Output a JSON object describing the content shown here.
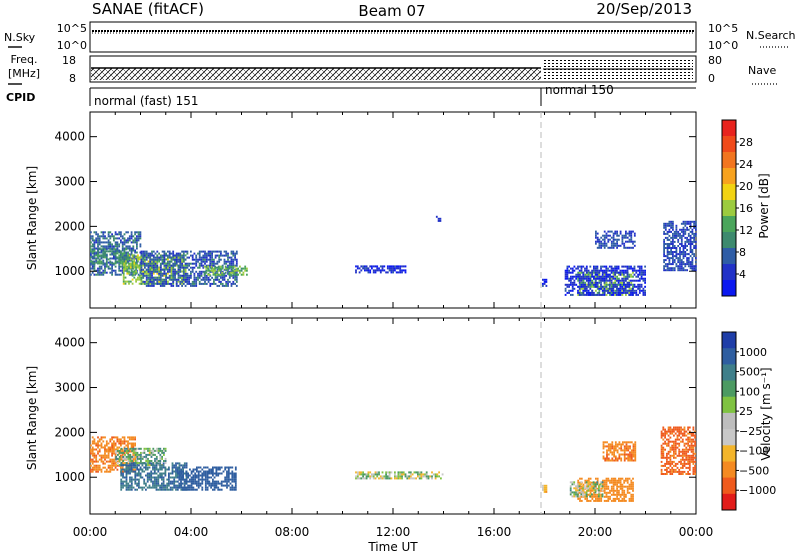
{
  "header": {
    "station": "SANAE (fitACF)",
    "beam": "Beam 07",
    "date": "20/Sep/2013"
  },
  "status_panels": {
    "nsky_label": "N.Sky",
    "nsky_ticks": [
      "10^5",
      "10^0"
    ],
    "nsearch_label": "N.Search",
    "nsearch_ticks": [
      "10^5",
      "10^0"
    ],
    "freq_label_line1": "Freq.",
    "freq_label_line2": "[MHz]",
    "freq_ticks": [
      "18",
      "8"
    ],
    "nave_label": "Nave",
    "nave_ticks": [
      "80",
      "0"
    ],
    "cpid_label": "CPID",
    "cpid_segments": [
      {
        "label": "normal (fast) 151",
        "start_h": 0,
        "end_h": 18
      },
      {
        "label": "normal 150",
        "start_h": 18,
        "end_h": 24
      }
    ]
  },
  "legend": {
    "power_label": "Power [dB]",
    "power_ticks": [
      "28",
      "24",
      "20",
      "16",
      "12",
      "8",
      "4"
    ],
    "velocity_label": "Velocity [m s⁻¹]",
    "velocity_ticks": [
      "1000",
      "500",
      "100",
      "25",
      "−25",
      "−100",
      "−500",
      "−1000"
    ],
    "power_colors": [
      "#e8231e",
      "#f04a1a",
      "#f2751f",
      "#f7a21e",
      "#f2d312",
      "#9ccb3f",
      "#4aa55b",
      "#3d8a6e",
      "#2f5da6",
      "#2232c7",
      "#0b18f0"
    ],
    "velocity_colors": [
      "#1f3ea8",
      "#2f5ea0",
      "#3f7f8a",
      "#4c9a62",
      "#7fc241",
      "#bdbdbd",
      "#c8c8c8",
      "#f3b52b",
      "#f48a21",
      "#ef5a1d",
      "#e21c1a"
    ]
  },
  "chart_data": [
    {
      "type": "heatmap",
      "title": "",
      "xlabel": "",
      "ylabel": "Slant Range [km]",
      "colorbar_label": "Power [dB]",
      "colorbar_ticks": [
        4,
        8,
        12,
        16,
        20,
        24,
        28
      ],
      "xlim_hours": [
        0,
        24
      ],
      "ylim_km": [
        180,
        4550
      ],
      "x_ticks": [
        "00:00",
        "04:00",
        "08:00",
        "12:00",
        "16:00",
        "20:00",
        "00:00"
      ],
      "y_ticks": [
        1000,
        2000,
        3000,
        4000
      ],
      "regions": [
        {
          "t0": 0.0,
          "t1": 2.0,
          "r0": 900,
          "r1": 1850,
          "value": 10
        },
        {
          "t0": 1.3,
          "t1": 3.8,
          "r0": 700,
          "r1": 1350,
          "value": 18
        },
        {
          "t0": 2.0,
          "t1": 5.8,
          "r0": 650,
          "r1": 1450,
          "value": 9
        },
        {
          "t0": 0.0,
          "t1": 1.5,
          "r0": 1150,
          "r1": 1500,
          "value": 13
        },
        {
          "t0": 4.5,
          "t1": 6.2,
          "r0": 900,
          "r1": 1100,
          "value": 16
        },
        {
          "t0": 13.7,
          "t1": 13.9,
          "r0": 2100,
          "r1": 2200,
          "value": 7
        },
        {
          "t0": 10.5,
          "t1": 12.5,
          "r0": 950,
          "r1": 1100,
          "value": 6
        },
        {
          "t0": 17.9,
          "t1": 18.1,
          "r0": 650,
          "r1": 800,
          "value": 6
        },
        {
          "t0": 19.3,
          "t1": 21.5,
          "r0": 450,
          "r1": 950,
          "value": 17
        },
        {
          "t0": 18.8,
          "t1": 22.0,
          "r0": 450,
          "r1": 1100,
          "value": 6
        },
        {
          "t0": 20.0,
          "t1": 21.6,
          "r0": 1500,
          "r1": 1900,
          "value": 8
        },
        {
          "t0": 22.7,
          "t1": 24.0,
          "r0": 1000,
          "r1": 2100,
          "value": 8
        }
      ]
    },
    {
      "type": "heatmap",
      "title": "",
      "xlabel": "Time UT",
      "ylabel": "Slant Range [km]",
      "colorbar_label": "Velocity [m s⁻¹]",
      "colorbar_ticks": [
        1000,
        500,
        100,
        25,
        -25,
        -100,
        -500,
        -1000
      ],
      "xlim_hours": [
        0,
        24
      ],
      "ylim_km": [
        180,
        4550
      ],
      "x_ticks": [
        "00:00",
        "04:00",
        "08:00",
        "12:00",
        "16:00",
        "20:00",
        "00:00"
      ],
      "y_ticks": [
        1000,
        2000,
        3000,
        4000
      ],
      "regions": [
        {
          "t0": 0.0,
          "t1": 1.8,
          "r0": 1100,
          "r1": 1900,
          "value": -250
        },
        {
          "t0": 1.0,
          "t1": 3.0,
          "r0": 1250,
          "r1": 1650,
          "value": 60
        },
        {
          "t0": 1.2,
          "t1": 3.8,
          "r0": 700,
          "r1": 1300,
          "value": 300
        },
        {
          "t0": 3.5,
          "t1": 5.8,
          "r0": 700,
          "r1": 1200,
          "value": 400
        },
        {
          "t0": 19.3,
          "t1": 21.5,
          "r0": 450,
          "r1": 950,
          "value": -200
        },
        {
          "t0": 19.0,
          "t1": 20.3,
          "r0": 550,
          "r1": 900,
          "value": 15
        },
        {
          "t0": 20.3,
          "t1": 21.6,
          "r0": 1350,
          "r1": 1800,
          "value": -250
        },
        {
          "t0": 22.6,
          "t1": 24.0,
          "r0": 1050,
          "r1": 2100,
          "value": -350
        },
        {
          "t0": 10.5,
          "t1": 14.0,
          "r0": 950,
          "r1": 1100,
          "value": 10
        },
        {
          "t0": 17.9,
          "t1": 18.1,
          "r0": 650,
          "r1": 800,
          "value": -60
        }
      ]
    }
  ]
}
